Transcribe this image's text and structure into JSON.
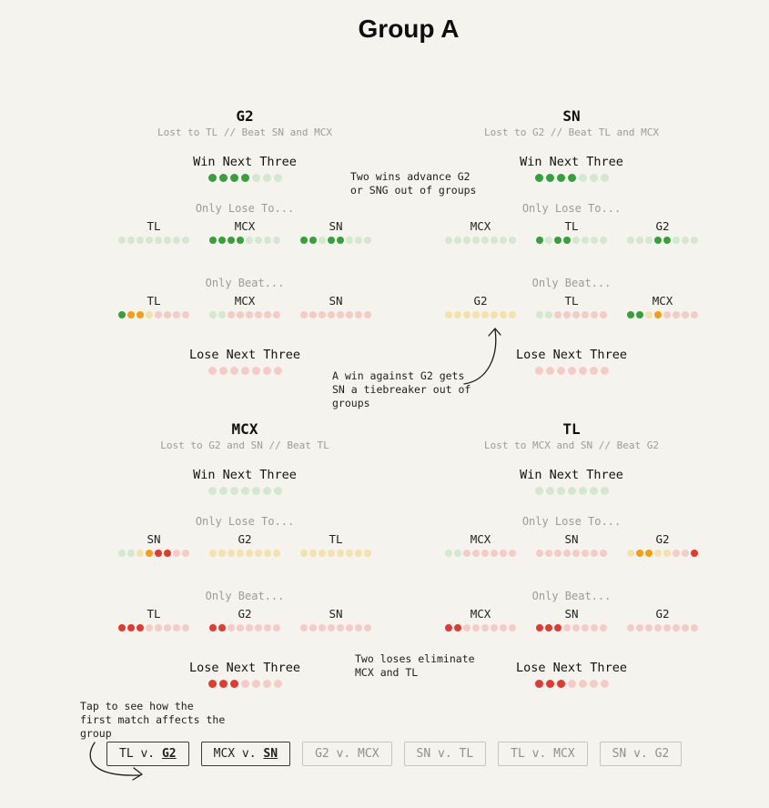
{
  "page": {
    "title": "Group A"
  },
  "chart_data": {
    "type": "dot-matrix",
    "title": "Group A",
    "dot_colors": {
      "G": "#35a13a",
      "g": "#d4e7cf",
      "y": "#f3e2ab",
      "O": "#f59d13",
      "R": "#e23a2e",
      "r": "#f5cbc6"
    },
    "teams": [
      {
        "name": "G2",
        "subtitle": "Lost to TL // Beat SN and MCX",
        "win_label": "Win Next Three",
        "win_dots": [
          "G",
          "G",
          "G",
          "G",
          "g",
          "g",
          "g"
        ],
        "lose_to_label": "Only Lose To...",
        "lose_to_columns": [
          {
            "team": "TL",
            "dots": [
              "g",
              "g",
              "g",
              "g",
              "g",
              "g",
              "g",
              "g"
            ]
          },
          {
            "team": "MCX",
            "dots": [
              "G",
              "G",
              "G",
              "G",
              "g",
              "g",
              "g",
              "g"
            ]
          },
          {
            "team": "SN",
            "dots": [
              "G",
              "G",
              "g",
              "G",
              "G",
              "g",
              "g",
              "g"
            ]
          }
        ],
        "beat_label": "Only Beat...",
        "beat_columns": [
          {
            "team": "TL",
            "dots": [
              "G",
              "O",
              "O",
              "y",
              "r",
              "r",
              "r",
              "r"
            ]
          },
          {
            "team": "MCX",
            "dots": [
              "g",
              "g",
              "r",
              "r",
              "r",
              "r",
              "r",
              "r"
            ]
          },
          {
            "team": "SN",
            "dots": [
              "r",
              "r",
              "r",
              "r",
              "r",
              "r",
              "r",
              "r"
            ]
          }
        ],
        "lose_label": "Lose Next Three",
        "lose_dots": [
          "r",
          "r",
          "r",
          "r",
          "r",
          "r",
          "r"
        ]
      },
      {
        "name": "SN",
        "subtitle": "Lost to G2 // Beat TL and MCX",
        "win_label": "Win Next Three",
        "win_dots": [
          "G",
          "G",
          "G",
          "G",
          "g",
          "g",
          "g"
        ],
        "lose_to_label": "Only Lose To...",
        "lose_to_columns": [
          {
            "team": "MCX",
            "dots": [
              "g",
              "g",
              "g",
              "g",
              "g",
              "g",
              "g",
              "g"
            ]
          },
          {
            "team": "TL",
            "dots": [
              "G",
              "g",
              "G",
              "G",
              "g",
              "g",
              "g",
              "g"
            ]
          },
          {
            "team": "G2",
            "dots": [
              "g",
              "g",
              "g",
              "G",
              "G",
              "g",
              "g",
              "g"
            ]
          }
        ],
        "beat_label": "Only Beat...",
        "beat_columns": [
          {
            "team": "G2",
            "dots": [
              "y",
              "y",
              "y",
              "y",
              "y",
              "y",
              "y",
              "y"
            ]
          },
          {
            "team": "TL",
            "dots": [
              "g",
              "g",
              "r",
              "r",
              "r",
              "r",
              "r",
              "r"
            ]
          },
          {
            "team": "MCX",
            "dots": [
              "G",
              "G",
              "y",
              "O",
              "r",
              "r",
              "r",
              "r"
            ]
          }
        ],
        "lose_label": "Lose Next Three",
        "lose_dots": [
          "r",
          "r",
          "r",
          "r",
          "r",
          "r",
          "r"
        ]
      },
      {
        "name": "MCX",
        "subtitle": "Lost to G2 and SN // Beat TL",
        "win_label": "Win Next Three",
        "win_dots": [
          "g",
          "g",
          "g",
          "g",
          "g",
          "g",
          "g"
        ],
        "lose_to_label": "Only Lose To...",
        "lose_to_columns": [
          {
            "team": "SN",
            "dots": [
              "g",
              "g",
              "y",
              "O",
              "R",
              "R",
              "r",
              "r"
            ]
          },
          {
            "team": "G2",
            "dots": [
              "y",
              "y",
              "y",
              "y",
              "y",
              "y",
              "y",
              "y"
            ]
          },
          {
            "team": "TL",
            "dots": [
              "y",
              "y",
              "y",
              "y",
              "y",
              "y",
              "y",
              "y"
            ]
          }
        ],
        "beat_label": "Only Beat...",
        "beat_columns": [
          {
            "team": "TL",
            "dots": [
              "R",
              "R",
              "R",
              "r",
              "r",
              "r",
              "r",
              "r"
            ]
          },
          {
            "team": "G2",
            "dots": [
              "R",
              "R",
              "r",
              "r",
              "r",
              "r",
              "r",
              "r"
            ]
          },
          {
            "team": "SN",
            "dots": [
              "r",
              "r",
              "r",
              "r",
              "r",
              "r",
              "r",
              "r"
            ]
          }
        ],
        "lose_label": "Lose Next Three",
        "lose_dots": [
          "R",
          "R",
          "R",
          "r",
          "r",
          "r",
          "r"
        ]
      },
      {
        "name": "TL",
        "subtitle": "Lost to MCX and SN // Beat G2",
        "win_label": "Win Next Three",
        "win_dots": [
          "g",
          "g",
          "g",
          "g",
          "g",
          "g",
          "g"
        ],
        "lose_to_label": "Only Lose To...",
        "lose_to_columns": [
          {
            "team": "MCX",
            "dots": [
              "g",
              "g",
              "r",
              "r",
              "r",
              "r",
              "r",
              "r"
            ]
          },
          {
            "team": "SN",
            "dots": [
              "r",
              "r",
              "r",
              "r",
              "r",
              "r",
              "r",
              "r"
            ]
          },
          {
            "team": "G2",
            "dots": [
              "y",
              "O",
              "O",
              "y",
              "y",
              "r",
              "r",
              "R"
            ]
          }
        ],
        "beat_label": "Only Beat...",
        "beat_columns": [
          {
            "team": "MCX",
            "dots": [
              "R",
              "R",
              "r",
              "r",
              "r",
              "r",
              "r",
              "r"
            ]
          },
          {
            "team": "SN",
            "dots": [
              "R",
              "R",
              "R",
              "r",
              "r",
              "r",
              "r",
              "r"
            ]
          },
          {
            "team": "G2",
            "dots": [
              "r",
              "r",
              "r",
              "r",
              "r",
              "r",
              "r",
              "r"
            ]
          }
        ],
        "lose_label": "Lose Next Three",
        "lose_dots": [
          "R",
          "R",
          "R",
          "r",
          "r",
          "r",
          "r"
        ]
      }
    ]
  },
  "annotations": {
    "advance": "Two wins advance G2\nor SNG out of groups",
    "tiebreaker": "A win against G2 gets\nSN a tiebreaker out of\ngroups",
    "eliminate": "Two loses eliminate\nMCX and TL",
    "tap": "Tap to see how the\nfirst match affects the\ngroup"
  },
  "match_buttons": [
    {
      "pre": "TL v. ",
      "highlight": "G2",
      "active": true
    },
    {
      "pre": "MCX v. ",
      "highlight": "SN",
      "active": true
    },
    {
      "pre": "G2 v. MCX",
      "highlight": "",
      "active": false
    },
    {
      "pre": "SN v. TL",
      "highlight": "",
      "active": false
    },
    {
      "pre": "TL v. MCX",
      "highlight": "",
      "active": false
    },
    {
      "pre": "SN v. G2",
      "highlight": "",
      "active": false
    }
  ]
}
